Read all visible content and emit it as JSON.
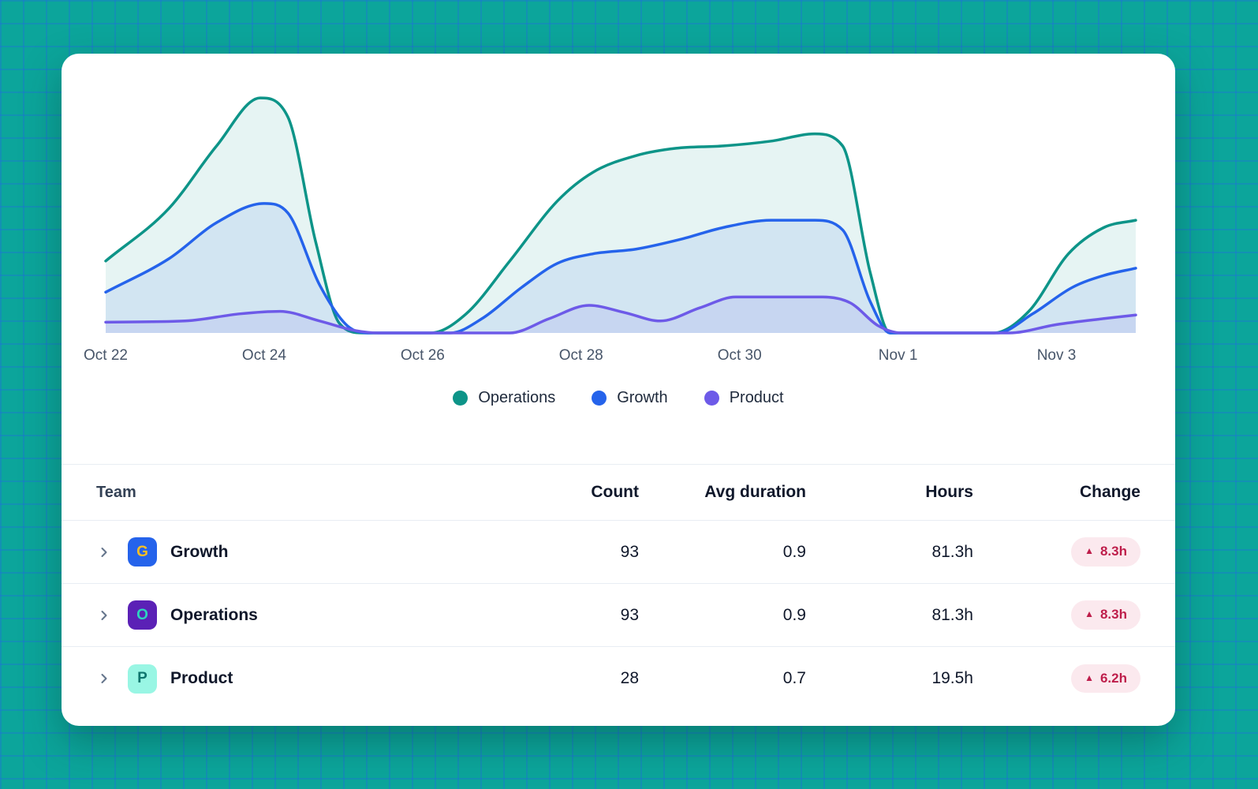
{
  "colors": {
    "background": "#0ca59b",
    "grid_line": "rgba(37,99,235,0.30)",
    "card_bg": "#ffffff",
    "divider": "#e8edf3",
    "header_text": "#334155",
    "axis_text": "#475569",
    "badge_bg": "#fbe9ee",
    "badge_text": "#be1e4b"
  },
  "icons": {
    "trend_up": "▲"
  },
  "chart_data": {
    "type": "area",
    "title": "",
    "xlabel": "",
    "ylabel": "",
    "x_domain_days": [
      0,
      13
    ],
    "y_domain": [
      0,
      1
    ],
    "grid": false,
    "legend_position": "bottom-center",
    "x_ticks": {
      "days": [
        0,
        2,
        4,
        6,
        8,
        10,
        12
      ],
      "labels": [
        "Oct 22",
        "Oct 24",
        "Oct 26",
        "Oct 28",
        "Oct 30",
        "Nov 1",
        "Nov 3"
      ]
    },
    "series": [
      {
        "name": "Operations",
        "color": "#0d9488",
        "fill_opacity": 0.1,
        "points": [
          [
            0,
            0.3
          ],
          [
            0.8,
            0.52
          ],
          [
            1.4,
            0.78
          ],
          [
            1.95,
            0.98
          ],
          [
            2.3,
            0.9
          ],
          [
            2.65,
            0.38
          ],
          [
            2.95,
            0.04
          ],
          [
            3.25,
            0
          ],
          [
            4.1,
            0
          ],
          [
            4.55,
            0.08
          ],
          [
            5.1,
            0.3
          ],
          [
            5.7,
            0.55
          ],
          [
            6.15,
            0.67
          ],
          [
            6.7,
            0.74
          ],
          [
            7.2,
            0.77
          ],
          [
            7.8,
            0.78
          ],
          [
            8.4,
            0.8
          ],
          [
            8.95,
            0.83
          ],
          [
            9.3,
            0.78
          ],
          [
            9.65,
            0.25
          ],
          [
            9.9,
            0
          ],
          [
            11.2,
            0
          ],
          [
            11.65,
            0.09
          ],
          [
            12.15,
            0.33
          ],
          [
            12.6,
            0.44
          ],
          [
            13,
            0.47
          ]
        ]
      },
      {
        "name": "Growth",
        "color": "#2563eb",
        "fill_opacity": 0.1,
        "points": [
          [
            0,
            0.17
          ],
          [
            0.8,
            0.31
          ],
          [
            1.4,
            0.46
          ],
          [
            2,
            0.54
          ],
          [
            2.3,
            0.5
          ],
          [
            2.7,
            0.2
          ],
          [
            3.05,
            0.03
          ],
          [
            3.35,
            0
          ],
          [
            4.35,
            0
          ],
          [
            4.75,
            0.06
          ],
          [
            5.25,
            0.19
          ],
          [
            5.7,
            0.29
          ],
          [
            6.15,
            0.33
          ],
          [
            6.7,
            0.35
          ],
          [
            7.25,
            0.39
          ],
          [
            7.8,
            0.44
          ],
          [
            8.4,
            0.47
          ],
          [
            8.95,
            0.47
          ],
          [
            9.3,
            0.43
          ],
          [
            9.65,
            0.13
          ],
          [
            9.9,
            0
          ],
          [
            11.25,
            0
          ],
          [
            11.7,
            0.08
          ],
          [
            12.2,
            0.19
          ],
          [
            12.6,
            0.24
          ],
          [
            13,
            0.27
          ]
        ]
      },
      {
        "name": "Product",
        "color": "#6d5ae8",
        "fill_opacity": 0.1,
        "points": [
          [
            0,
            0.045
          ],
          [
            1,
            0.05
          ],
          [
            1.7,
            0.08
          ],
          [
            2.2,
            0.09
          ],
          [
            2.7,
            0.05
          ],
          [
            3.15,
            0.01
          ],
          [
            3.45,
            0
          ],
          [
            5.1,
            0
          ],
          [
            5.6,
            0.06
          ],
          [
            6.1,
            0.115
          ],
          [
            6.55,
            0.085
          ],
          [
            7,
            0.05
          ],
          [
            7.5,
            0.105
          ],
          [
            7.95,
            0.15
          ],
          [
            8.5,
            0.15
          ],
          [
            9.05,
            0.15
          ],
          [
            9.4,
            0.125
          ],
          [
            9.75,
            0.03
          ],
          [
            10.05,
            0
          ],
          [
            11.4,
            0
          ],
          [
            12,
            0.035
          ],
          [
            12.6,
            0.06
          ],
          [
            13,
            0.075
          ]
        ]
      }
    ]
  },
  "table": {
    "columns": [
      "Team",
      "Count",
      "Avg duration",
      "Hours",
      "Change"
    ],
    "rows": [
      {
        "team": "Growth",
        "initial": "G",
        "icon_bg": "#2563eb",
        "icon_color": "#fbbf24",
        "count": "93",
        "avg_duration": "0.9",
        "hours": "81.3h",
        "change": "8.3h",
        "change_direction": "up"
      },
      {
        "team": "Operations",
        "initial": "O",
        "icon_bg": "#5b21b6",
        "icon_color": "#2dd4bf",
        "count": "93",
        "avg_duration": "0.9",
        "hours": "81.3h",
        "change": "8.3h",
        "change_direction": "up"
      },
      {
        "team": "Product",
        "initial": "P",
        "icon_bg": "#99f6e4",
        "icon_color": "#0f766e",
        "count": "28",
        "avg_duration": "0.7",
        "hours": "19.5h",
        "change": "6.2h",
        "change_direction": "up"
      }
    ]
  }
}
